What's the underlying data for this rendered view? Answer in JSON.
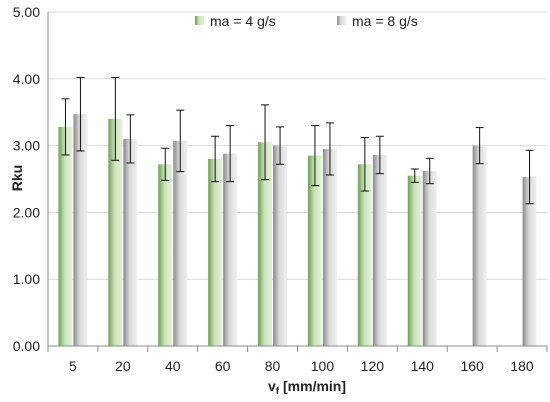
{
  "chart_data": {
    "type": "bar",
    "categories": [
      "5",
      "20",
      "40",
      "60",
      "80",
      "100",
      "120",
      "140",
      "160",
      "180"
    ],
    "series": [
      {
        "name": "ma = 4 g/s",
        "color": "#9cc487",
        "values": [
          3.28,
          3.4,
          2.72,
          2.8,
          3.05,
          2.85,
          2.72,
          2.55,
          null,
          null
        ],
        "errors": [
          0.42,
          0.62,
          0.24,
          0.34,
          0.56,
          0.45,
          0.4,
          0.1,
          null,
          null
        ]
      },
      {
        "name": "ma = 8 g/s",
        "color": "#bdbdbd",
        "values": [
          3.47,
          3.1,
          3.07,
          2.88,
          3.0,
          2.95,
          2.86,
          2.62,
          3.0,
          2.53
        ],
        "errors": [
          0.55,
          0.36,
          0.46,
          0.42,
          0.28,
          0.39,
          0.28,
          0.19,
          0.27,
          0.4
        ]
      }
    ],
    "ylim": [
      0,
      5
    ],
    "yticks": [
      "0.00",
      "1.00",
      "2.00",
      "3.00",
      "4.00",
      "5.00"
    ],
    "ylabel": "Rku",
    "xlabel": {
      "main": "v",
      "sub": "f",
      "rest": " [mm/min]"
    },
    "grid": true,
    "legend_position": "top"
  }
}
